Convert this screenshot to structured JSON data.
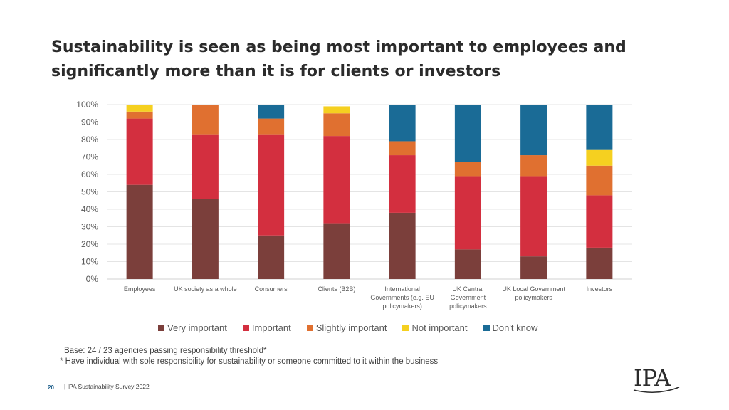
{
  "title_lines": [
    "Sustainability is seen as being most important to employees and",
    "significantly more than it is for clients or investors"
  ],
  "base_text": "Base: 24 / 23 agencies passing responsibility threshold*",
  "footnote_text": "* Have individual with sole responsibility for sustainability or someone committed to it within the business",
  "footer": {
    "page_number": "20",
    "text": "| IPA Sustainability Survey 2022",
    "logo_text": "IPA"
  },
  "chart_data": {
    "type": "bar",
    "stacked": true,
    "title": "",
    "xlabel": "",
    "ylabel": "",
    "ylim": [
      0,
      100
    ],
    "y_ticks": [
      "0%",
      "10%",
      "20%",
      "30%",
      "40%",
      "50%",
      "60%",
      "70%",
      "80%",
      "90%",
      "100%"
    ],
    "grid": true,
    "legend_position": "bottom",
    "categories": [
      [
        "Employees"
      ],
      [
        "UK society as a whole"
      ],
      [
        "Consumers"
      ],
      [
        "Clients (B2B)"
      ],
      [
        "International",
        "Governments (e.g. EU",
        "policymakers)"
      ],
      [
        "UK Central",
        "Government",
        "policymakers"
      ],
      [
        "UK Local Government",
        "policymakers"
      ],
      [
        "Investors"
      ]
    ],
    "series": [
      {
        "name": "Very important",
        "color": "#7b3f3b",
        "values": [
          54,
          46,
          25,
          32,
          38,
          17,
          13,
          18
        ]
      },
      {
        "name": "Important",
        "color": "#d32f3f",
        "values": [
          38,
          37,
          58,
          50,
          33,
          42,
          46,
          30
        ]
      },
      {
        "name": "Slightly important",
        "color": "#e07030",
        "values": [
          4,
          17,
          9,
          13,
          8,
          8,
          12,
          17
        ]
      },
      {
        "name": "Not important",
        "color": "#f5d020",
        "values": [
          4,
          0,
          0,
          4,
          0,
          0,
          0,
          9
        ]
      },
      {
        "name": "Don't know",
        "color": "#1a6b96",
        "values": [
          0,
          0,
          8,
          0,
          21,
          33,
          29,
          26
        ]
      }
    ]
  }
}
